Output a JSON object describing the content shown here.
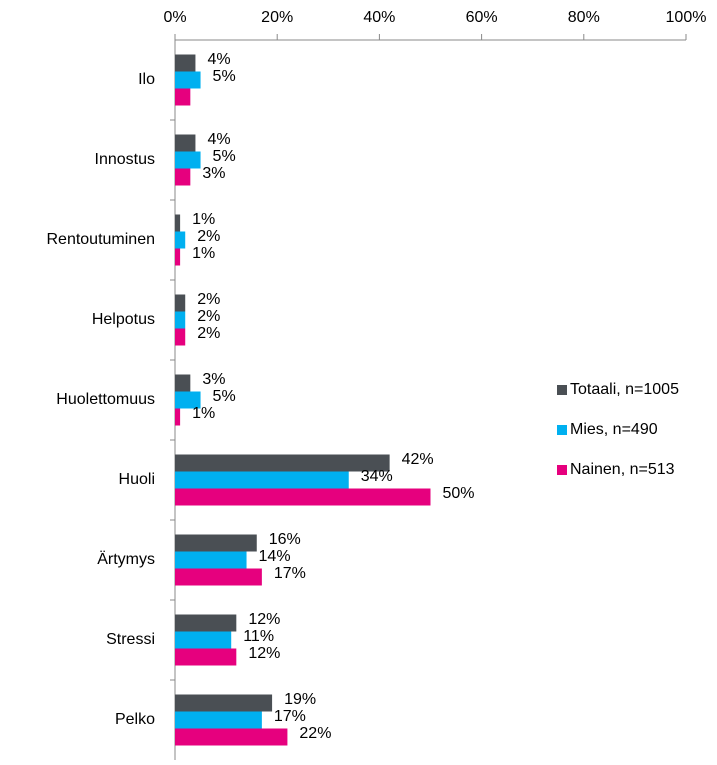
{
  "chart_data": {
    "type": "barh",
    "categories": [
      "Ilo",
      "Innostus",
      "Rentoutuminen",
      "Helpotus",
      "Huolettomuus",
      "Huoli",
      "Ärtymys",
      "Stressi",
      "Pelko"
    ],
    "series": [
      {
        "name": "Totaali, n=1005",
        "color": "#4a4f54",
        "values": [
          4,
          4,
          1,
          2,
          3,
          42,
          16,
          12,
          19
        ],
        "value_labels": [
          "4%",
          "4%",
          "1%",
          "2%",
          "3%",
          "42%",
          "16%",
          "12%",
          "19%"
        ]
      },
      {
        "name": "Mies, n=490",
        "color": "#00b0f0",
        "values": [
          5,
          5,
          2,
          2,
          5,
          34,
          14,
          11,
          17
        ],
        "value_labels": [
          "5%",
          "5%",
          "2%",
          "2%",
          "5%",
          "34%",
          "14%",
          "11%",
          "17%"
        ]
      },
      {
        "name": "Nainen, n=513",
        "color": "#e6007e",
        "values": [
          3,
          3,
          1,
          2,
          1,
          50,
          17,
          12,
          22
        ],
        "value_labels": [
          null,
          "3%",
          "1%",
          "2%",
          "1%",
          "50%",
          "17%",
          "12%",
          "22%"
        ]
      }
    ],
    "xlim": [
      0,
      100
    ],
    "xticks": [
      {
        "value": 0,
        "label": "0%"
      },
      {
        "value": 20,
        "label": "20%"
      },
      {
        "value": 40,
        "label": "40%"
      },
      {
        "value": 60,
        "label": "60%"
      },
      {
        "value": 80,
        "label": "80%"
      },
      {
        "value": 100,
        "label": "100%"
      }
    ],
    "legend": "right"
  }
}
